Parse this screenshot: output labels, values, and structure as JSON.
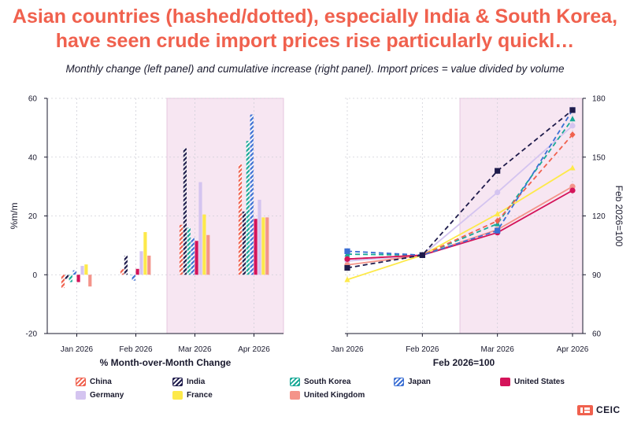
{
  "title": "Asian countries (hashed/dotted), especially India & South Korea, have seen crude import prices rise particularly quickl…",
  "subtitle": "Monthly change (left panel) and cumulative increase (right panel). Import prices = value divided by volume",
  "brand": "CEIC",
  "colors": {
    "title": "#f0614e",
    "highlight_band": "#f7e6f2",
    "China": "#f0614e",
    "India": "#1e1b4b",
    "South Korea": "#17a896",
    "Japan": "#3b6fd4",
    "United States": "#d4145a",
    "Germany": "#d4c4f0",
    "France": "#fde94a",
    "United Kingdom": "#f4948a"
  },
  "legend": [
    {
      "name": "China",
      "pattern": "hashed"
    },
    {
      "name": "India",
      "pattern": "hashed"
    },
    {
      "name": "South Korea",
      "pattern": "hashed"
    },
    {
      "name": "Japan",
      "pattern": "hashed"
    },
    {
      "name": "United States",
      "pattern": "solid"
    },
    {
      "name": "Germany",
      "pattern": "solid"
    },
    {
      "name": "France",
      "pattern": "solid"
    },
    {
      "name": "United Kingdom",
      "pattern": "solid"
    }
  ],
  "chart_data": [
    {
      "type": "bar",
      "panel": "left",
      "xlabel": "% Month-over-Month Change",
      "ylabel": "%m/m",
      "ylim": [
        -20,
        60
      ],
      "yticks": [
        -20,
        0,
        20,
        40,
        60
      ],
      "categories": [
        "Jan 2026",
        "Feb 2026",
        "Mar 2026",
        "Apr 2026"
      ],
      "highlight": [
        "Mar 2026",
        "Apr 2026"
      ],
      "grid": true,
      "series": [
        {
          "name": "China",
          "values": [
            -4.5,
            2.0,
            17.0,
            37.5
          ]
        },
        {
          "name": "India",
          "values": [
            -1.5,
            6.5,
            43.0,
            21.5
          ]
        },
        {
          "name": "South Korea",
          "values": [
            -2.5,
            0.0,
            16.0,
            45.5
          ]
        },
        {
          "name": "Japan",
          "values": [
            1.5,
            -2.0,
            12.5,
            54.5
          ]
        },
        {
          "name": "United States",
          "values": [
            -2.5,
            2.0,
            11.5,
            19.0
          ]
        },
        {
          "name": "Germany",
          "values": [
            3.0,
            8.0,
            31.5,
            25.5
          ]
        },
        {
          "name": "France",
          "values": [
            3.5,
            14.5,
            20.5,
            19.5
          ]
        },
        {
          "name": "United Kingdom",
          "values": [
            -4.0,
            6.5,
            13.5,
            19.5
          ]
        }
      ]
    },
    {
      "type": "line",
      "panel": "right",
      "xlabel": "Feb 2026=100",
      "ylabel": "Feb 2026=100",
      "ylim": [
        60,
        180
      ],
      "yticks": [
        60,
        90,
        120,
        150,
        180
      ],
      "y_axis_side": "right",
      "categories": [
        "Jan 2026",
        "Feb 2026",
        "Mar 2026",
        "Apr 2026"
      ],
      "highlight": [
        "Mar 2026",
        "Apr 2026"
      ],
      "grid": true,
      "series": [
        {
          "name": "China",
          "values": [
            98.0,
            100.0,
            117.5,
            161.5
          ]
        },
        {
          "name": "India",
          "values": [
            93.5,
            100.0,
            143.0,
            174.0
          ]
        },
        {
          "name": "South Korea",
          "values": [
            100.5,
            100.0,
            116.0,
            169.5
          ]
        },
        {
          "name": "Japan",
          "values": [
            102.0,
            100.0,
            112.5,
            174.0
          ]
        },
        {
          "name": "United States",
          "values": [
            98.0,
            100.0,
            111.5,
            133.0
          ]
        },
        {
          "name": "Germany",
          "values": [
            97.0,
            100.0,
            132.0,
            166.0
          ]
        },
        {
          "name": "France",
          "values": [
            87.5,
            100.0,
            121.0,
            144.5
          ]
        },
        {
          "name": "United Kingdom",
          "values": [
            95.0,
            100.0,
            113.0,
            135.0
          ]
        }
      ]
    }
  ]
}
